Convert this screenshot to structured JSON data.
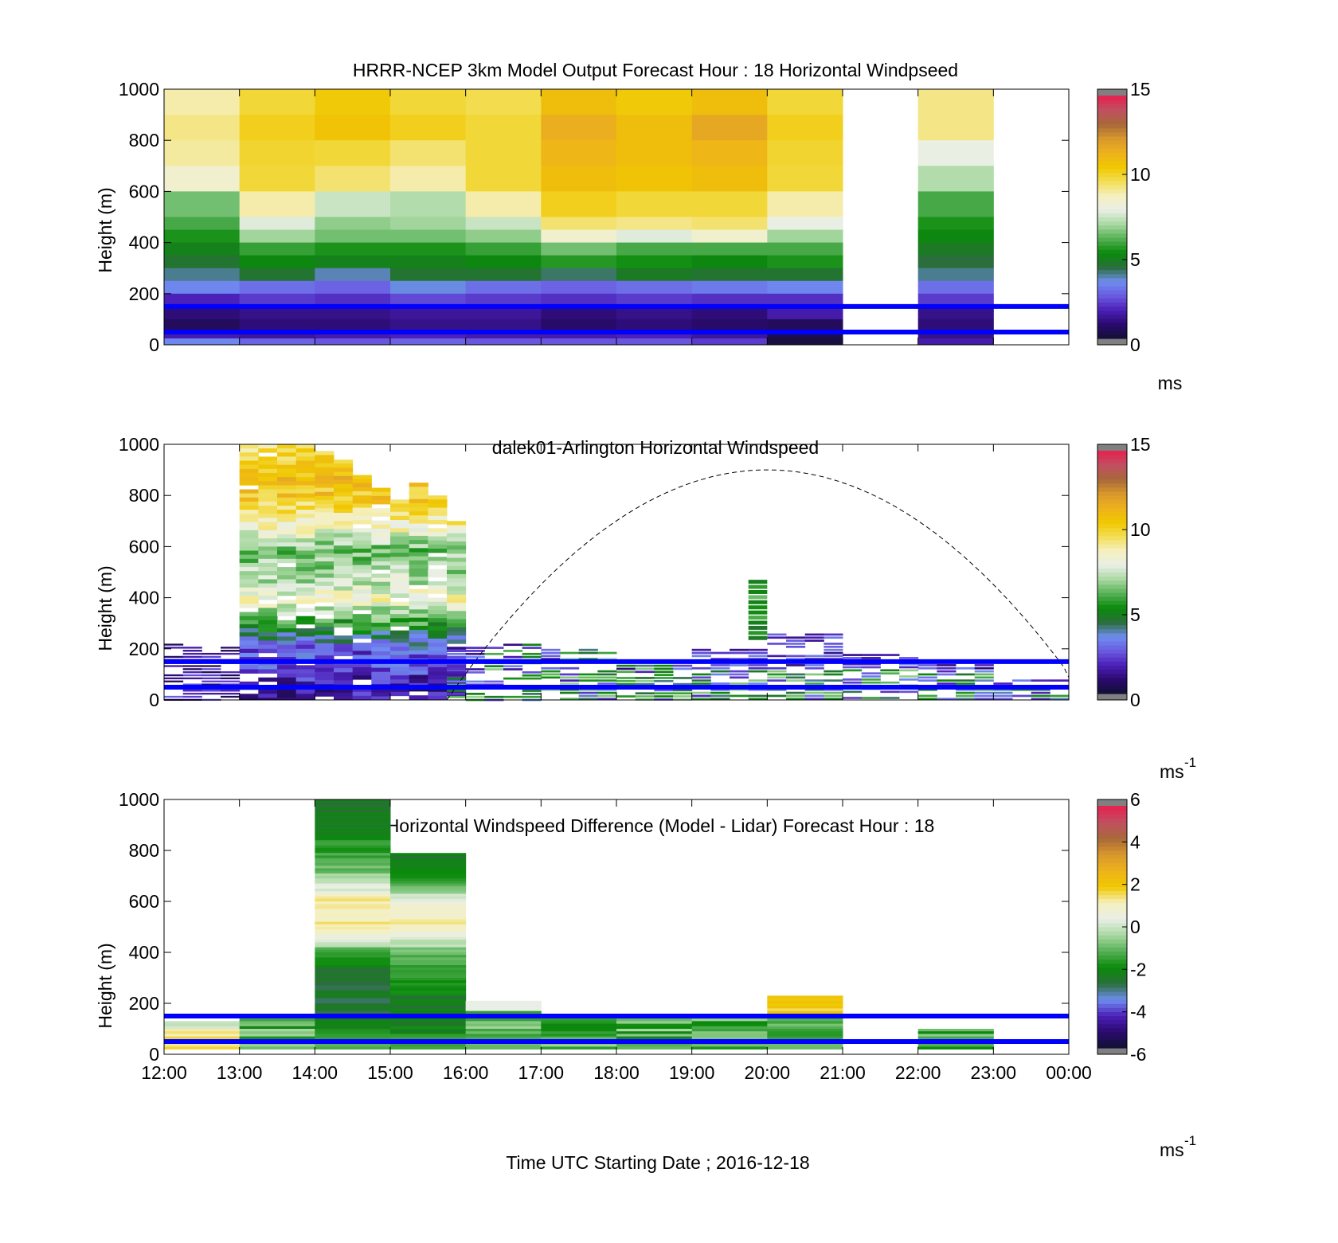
{
  "colors": {
    "windspeed_scale": [
      "#111133",
      "#2a0a6e",
      "#4b1fb8",
      "#6a5ae0",
      "#6f8ef0",
      "#2a6e3a",
      "#0a8a0a",
      "#55b055",
      "#a8d8a0",
      "#e9efe6",
      "#f5f0c0",
      "#f3de56",
      "#f0c800",
      "#eeb21c",
      "#d8982c",
      "#a8683a",
      "#c05060",
      "#e62050"
    ],
    "difference_scale": [
      "#111133",
      "#2a0a6e",
      "#4b1fb8",
      "#6f8ef0",
      "#2a6e3a",
      "#0a8a0a",
      "#55b055",
      "#a8d8a0",
      "#e9efe6",
      "#f5f0c0",
      "#f0c800",
      "#eeb21c",
      "#d8982c",
      "#a8683a",
      "#c05060",
      "#e62050"
    ],
    "boundary_line": "#0000ff",
    "arc_line": "#000000",
    "out_of_range": "#808080"
  },
  "chart_data": [
    {
      "type": "heatmap",
      "title": "HRRR-NCEP 3km Model Output   Forecast Hour : 18 Horizontal Windpseed",
      "ylabel": "Height (m)",
      "ylim": [
        0,
        1000
      ],
      "yticks": [
        "0",
        "200",
        "400",
        "600",
        "800",
        "1000"
      ],
      "xlim": [
        "12:00",
        "00:00"
      ],
      "colorbar": {
        "min": 0,
        "max": 15,
        "ticks": [
          "0",
          "5",
          "10",
          "15"
        ],
        "unit": "ms"
      },
      "columns": [
        "12:00",
        "13:00",
        "14:00",
        "15:00",
        "16:00",
        "17:00",
        "18:00",
        "19:00",
        "20:00",
        "21:00",
        "22:00",
        "23:00"
      ],
      "heights": [
        1000,
        900,
        800,
        700,
        600,
        500,
        450,
        400,
        350,
        300,
        250,
        200,
        150,
        100,
        50,
        25
      ],
      "values": [
        [
          9.0,
          10.0,
          10.5,
          10.0,
          9.8,
          11.0,
          10.5,
          11.0,
          10.0,
          null,
          9.3,
          null
        ],
        [
          9.3,
          10.3,
          10.8,
          10.3,
          10.0,
          11.6,
          11.0,
          11.8,
          10.3,
          null,
          9.3,
          null
        ],
        [
          9.1,
          10.1,
          10.0,
          9.5,
          10.0,
          11.3,
          11.0,
          11.3,
          10.1,
          null,
          8.0,
          null
        ],
        [
          8.5,
          10.0,
          9.5,
          9.0,
          10.0,
          11.0,
          10.8,
          11.0,
          10.0,
          null,
          7.2,
          null
        ],
        [
          6.5,
          9.0,
          7.5,
          7.2,
          9.0,
          10.3,
          10.0,
          10.0,
          9.0,
          null,
          6.0,
          null
        ],
        [
          6.0,
          7.8,
          6.8,
          7.0,
          7.5,
          9.5,
          9.3,
          9.5,
          8.0,
          null,
          5.5,
          null
        ],
        [
          5.5,
          7.0,
          6.5,
          6.5,
          6.8,
          8.5,
          7.8,
          8.5,
          7.0,
          null,
          5.2,
          null
        ],
        [
          5.0,
          5.8,
          5.5,
          5.5,
          5.8,
          6.5,
          6.0,
          6.0,
          6.0,
          null,
          4.8,
          null
        ],
        [
          4.6,
          5.2,
          5.0,
          5.0,
          5.2,
          5.6,
          5.4,
          5.2,
          5.5,
          null,
          4.4,
          null
        ],
        [
          4.0,
          4.6,
          3.8,
          4.6,
          4.6,
          4.2,
          4.8,
          4.6,
          4.6,
          null,
          4.0,
          null
        ],
        [
          3.4,
          3.0,
          2.8,
          3.6,
          3.0,
          2.8,
          3.0,
          3.2,
          3.4,
          null,
          3.0,
          null
        ],
        [
          1.8,
          2.2,
          2.0,
          2.4,
          2.2,
          2.0,
          2.2,
          2.0,
          2.0,
          null,
          2.2,
          null
        ],
        [
          1.0,
          1.2,
          1.2,
          1.4,
          1.4,
          1.0,
          1.2,
          1.0,
          1.6,
          null,
          1.2,
          null
        ],
        [
          0.6,
          1.0,
          1.0,
          1.2,
          1.2,
          0.8,
          1.0,
          0.8,
          0.6,
          null,
          1.0,
          null
        ],
        [
          1.6,
          1.4,
          1.6,
          1.8,
          1.6,
          1.6,
          1.8,
          1.4,
          0.4,
          null,
          1.2,
          null
        ],
        [
          3.4,
          2.8,
          2.6,
          2.8,
          2.6,
          2.6,
          2.6,
          2.2,
          0.2,
          null,
          1.6,
          null
        ]
      ],
      "reference_lines_height_m": [
        150,
        50
      ]
    },
    {
      "type": "heatmap",
      "title": "dalek01-Arlington  Horizontal Windspeed",
      "ylabel": "Height (m)",
      "ylim": [
        0,
        1000
      ],
      "yticks": [
        "0",
        "200",
        "400",
        "600",
        "800",
        "1000"
      ],
      "xlim": [
        "12:00",
        "00:00"
      ],
      "colorbar": {
        "min": 0,
        "max": 15,
        "ticks": [
          "0",
          "5",
          "10",
          "15"
        ],
        "unit": "ms",
        "unit_exp": "-1"
      },
      "columns_hours": [
        13.0,
        13.25,
        13.5,
        13.75,
        14.0,
        14.25,
        14.5,
        14.75,
        15.0,
        15.25,
        15.5,
        15.75
      ],
      "column_tops_m": [
        1000,
        1000,
        1000,
        1000,
        990,
        940,
        880,
        830,
        800,
        850,
        800,
        700
      ],
      "profile_by_height": {
        "heights": [
          1000,
          900,
          800,
          700,
          600,
          500,
          400,
          300,
          200,
          150,
          100,
          50
        ],
        "values": [
          9.5,
          11.0,
          10.5,
          9.0,
          6.5,
          7.0,
          8.5,
          5.5,
          2.5,
          3.0,
          2.0,
          1.5
        ]
      },
      "late_segments": [
        {
          "start": 15.75,
          "end": 16.25,
          "top_m": 220
        },
        {
          "start": 16.25,
          "end": 17.0,
          "top_m": 220
        },
        {
          "start": 17.0,
          "end": 18.0,
          "top_m": 200
        },
        {
          "start": 18.0,
          "end": 19.0,
          "top_m": 150
        },
        {
          "start": 19.0,
          "end": 20.0,
          "top_m": 200
        },
        {
          "start": 20.0,
          "end": 21.0,
          "top_m": 260
        },
        {
          "start": 21.0,
          "end": 22.0,
          "top_m": 180
        },
        {
          "start": 22.0,
          "end": 23.0,
          "top_m": 140
        },
        {
          "start": 23.0,
          "end": 24.0,
          "top_m": 80
        }
      ],
      "arc_peak": {
        "hour": 20.0,
        "height_m": 900
      },
      "arc_base": {
        "hours": [
          15.75,
          24.25
        ],
        "height_m": 0
      },
      "reference_lines_height_m": [
        150,
        50
      ]
    },
    {
      "type": "heatmap",
      "title": "Horizontal Windspeed Difference (Model - Lidar) Forecast Hour : 18",
      "ylabel": "Height (m)",
      "xlabel": "Time UTC  Starting Date ; 2016-12-18",
      "ylim": [
        0,
        1000
      ],
      "yticks": [
        "0",
        "200",
        "400",
        "600",
        "800",
        "1000"
      ],
      "xticks": [
        "12:00",
        "13:00",
        "14:00",
        "15:00",
        "16:00",
        "17:00",
        "18:00",
        "19:00",
        "20:00",
        "21:00",
        "22:00",
        "23:00",
        "00:00"
      ],
      "colorbar": {
        "min": -6,
        "max": 6,
        "ticks": [
          "-6",
          "-4",
          "-2",
          "0",
          "2",
          "4",
          "6"
        ],
        "unit": "ms",
        "unit_exp": "-1"
      },
      "blocks": [
        {
          "start": "12:00",
          "end": "13:00",
          "top_m": 130
        },
        {
          "start": "13:00",
          "end": "14:00",
          "top_m": 150
        },
        {
          "start": "14:00",
          "end": "15:00",
          "top_m": 1000
        },
        {
          "start": "15:00",
          "end": "16:00",
          "top_m": 790
        },
        {
          "start": "16:00",
          "end": "17:00",
          "top_m": 210
        },
        {
          "start": "17:00",
          "end": "18:00",
          "top_m": 150
        },
        {
          "start": "18:00",
          "end": "19:00",
          "top_m": 150
        },
        {
          "start": "19:00",
          "end": "20:00",
          "top_m": 150
        },
        {
          "start": "20:00",
          "end": "21:00",
          "top_m": 230
        },
        {
          "start": "21:00",
          "end": "22:00",
          "top_m": 0
        },
        {
          "start": "22:00",
          "end": "23:00",
          "top_m": 100
        }
      ],
      "profile_14": {
        "heights": [
          1000,
          900,
          800,
          700,
          650,
          600,
          500,
          450,
          400,
          350,
          300,
          200,
          150,
          100,
          50
        ],
        "values": [
          -2.6,
          -2.2,
          -1.6,
          -0.6,
          0.4,
          1.4,
          1.2,
          0.2,
          -1.6,
          -2.4,
          -2.6,
          -2.8,
          -2.5,
          -2.0,
          -1.5
        ]
      },
      "profile_15": {
        "heights": [
          790,
          700,
          650,
          600,
          500,
          450,
          400,
          350,
          300,
          200,
          150,
          100,
          50
        ],
        "values": [
          -2.4,
          -1.6,
          -0.6,
          1.0,
          1.2,
          0.0,
          -1.0,
          -1.5,
          -1.8,
          -2.6,
          -2.4,
          -2.0,
          -1.5
        ]
      },
      "reference_lines_height_m": [
        150,
        50
      ]
    }
  ]
}
